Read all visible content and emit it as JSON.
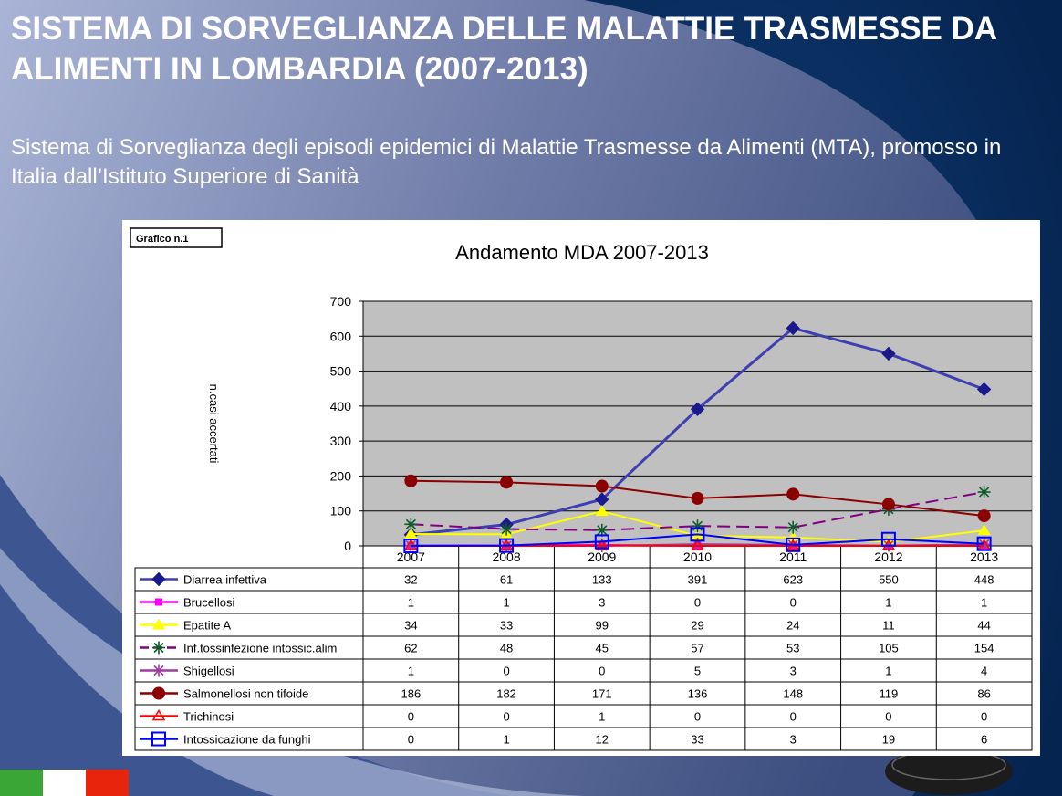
{
  "slide": {
    "title": "SISTEMA DI SORVEGLIANZA DELLE MALATTIE TRASMESSE DA ALIMENTI IN LOMBARDIA (2007-2013)",
    "subtitle": "Sistema di Sorveglianza degli episodi epidemici di Malattie Trasmesse da Alimenti (MTA), promosso in Italia dall’Istituto Superiore di Sanità"
  },
  "colors": {
    "background_dark": "#0b2a56",
    "background_light": "#a9b4d6",
    "plot_area": "#c0c0c0",
    "flag_green": "#3aa635",
    "flag_white": "#ffffff",
    "flag_red": "#e8240c"
  },
  "chart_data": {
    "type": "line",
    "badge": "Grafico n.1",
    "title": "Andamento MDA 2007-2013",
    "xlabel": "",
    "ylabel": "n.casi accertati",
    "ylim": [
      0,
      700
    ],
    "yticks": [
      0,
      100,
      200,
      300,
      400,
      500,
      600,
      700
    ],
    "grid": "horizontal",
    "legend": "data-table",
    "categories": [
      "2007",
      "2008",
      "2009",
      "2010",
      "2011",
      "2012",
      "2013"
    ],
    "series": [
      {
        "name": "Diarrea infettiva",
        "color": "#3f3fb2",
        "marker": "diamond",
        "dash": "",
        "values": [
          32,
          61,
          133,
          391,
          623,
          550,
          448
        ]
      },
      {
        "name": "Brucellosi",
        "color": "#ff00ff",
        "marker": "square",
        "dash": "",
        "values": [
          1,
          1,
          3,
          0,
          0,
          1,
          1
        ]
      },
      {
        "name": "Epatite A",
        "color": "#ffff00",
        "marker": "triangle",
        "dash": "",
        "values": [
          34,
          33,
          99,
          29,
          24,
          11,
          44
        ]
      },
      {
        "name": "Inf.tossinfezione intossic.alim",
        "color": "#800080",
        "marker": "asterisk",
        "dash": "14 7",
        "values": [
          62,
          48,
          45,
          57,
          53,
          105,
          154
        ]
      },
      {
        "name": "Shigellosi",
        "color": "#9c3c9c",
        "marker": "star",
        "dash": "",
        "values": [
          1,
          0,
          0,
          5,
          3,
          1,
          4
        ]
      },
      {
        "name": "Salmonellosi non tifoide",
        "color": "#8b0000",
        "marker": "circle",
        "dash": "",
        "values": [
          186,
          182,
          171,
          136,
          148,
          119,
          86
        ]
      },
      {
        "name": "Trichinosi",
        "color": "#ff0000",
        "marker": "triangle-open",
        "dash": "",
        "values": [
          0,
          0,
          1,
          0,
          0,
          0,
          0
        ]
      },
      {
        "name": "Intossicazione da funghi",
        "color": "#0000ff",
        "marker": "square-open",
        "dash": "",
        "values": [
          0,
          1,
          12,
          33,
          3,
          19,
          6
        ]
      }
    ]
  }
}
